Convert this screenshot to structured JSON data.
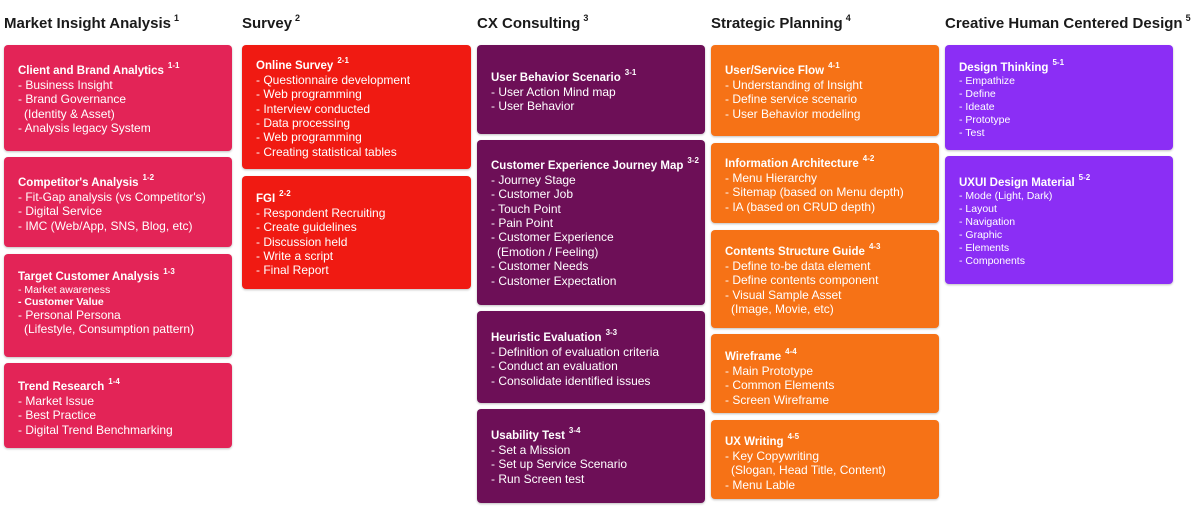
{
  "columns": [
    {
      "title": "Market Insight Analysis",
      "num": "1",
      "color": "#e32457",
      "cards": [
        {
          "title": "Client and Brand Analytics",
          "num": "1-1",
          "items": [
            "- Business Insight",
            "- Brand Governance",
            "(Identity & Asset)",
            "- Analysis legacy System"
          ]
        },
        {
          "title": "Competitor's Analysis",
          "num": "1-2",
          "items": [
            "- Fit-Gap analysis (vs Competitor's)",
            "- Digital Service",
            "- IMC (Web/App, SNS, Blog, etc)"
          ]
        },
        {
          "title": "Target Customer Analysis",
          "num": "1-3",
          "items": [
            "- Market awareness",
            "- Customer Value",
            "- Personal Persona",
            "(Lifestyle, Consumption pattern)"
          ]
        },
        {
          "title": "Trend Research",
          "num": "1-4",
          "items": [
            "- Market Issue",
            "- Best Practice",
            "- Digital Trend Benchmarking"
          ]
        }
      ]
    },
    {
      "title": "Survey",
      "num": "2",
      "color": "#f01a12",
      "cards": [
        {
          "title": "Online Survey",
          "num": "2-1",
          "items": [
            "- Questionnaire development",
            "- Web programming",
            "- Interview conducted",
            "- Data processing",
            "- Web programming",
            "- Creating statistical tables"
          ]
        },
        {
          "title": "FGI",
          "num": "2-2",
          "items": [
            "- Respondent Recruiting",
            "- Create guidelines",
            "- Discussion held",
            "- Write a script",
            "- Final Report"
          ]
        }
      ]
    },
    {
      "title": "CX Consulting",
      "num": "3",
      "color": "#6d0f57",
      "cards": [
        {
          "title": "User Behavior Scenario",
          "num": "3-1",
          "items": [
            "- User Action Mind map",
            "- User Behavior"
          ]
        },
        {
          "title": "Customer Experience Journey Map",
          "num": "3-2",
          "items": [
            "- Journey Stage",
            "- Customer Job",
            "- Touch Point",
            "- Pain Point",
            "- Customer Experience",
            "(Emotion / Feeling)",
            "- Customer Needs",
            "- Customer Expectation"
          ]
        },
        {
          "title": "Heuristic Evaluation",
          "num": "3-3",
          "items": [
            "- Definition of evaluation criteria",
            "- Conduct an evaluation",
            "- Consolidate identified issues"
          ]
        },
        {
          "title": "Usability Test",
          "num": "3-4",
          "items": [
            "- Set a Mission",
            "- Set up Service Scenario",
            "- Run Screen test"
          ]
        }
      ]
    },
    {
      "title": "Strategic Planning",
      "num": "4",
      "color": "#f67216",
      "cards": [
        {
          "title": "User/Service Flow",
          "num": "4-1",
          "items": [
            "- Understanding of Insight",
            "- Define service scenario",
            "- User Behavior modeling"
          ]
        },
        {
          "title": "Information Architecture",
          "num": "4-2",
          "items": [
            "- Menu Hierarchy",
            "- Sitemap (based on Menu depth)",
            "- IA (based on CRUD depth)"
          ]
        },
        {
          "title": "Contents Structure Guide",
          "num": "4-3",
          "items": [
            "- Define to-be data element",
            "- Define contents component",
            "- Visual Sample Asset",
            "(Image, Movie, etc)"
          ]
        },
        {
          "title": "Wireframe",
          "num": "4-4",
          "items": [
            "- Main Prototype",
            "- Common Elements",
            "- Screen Wireframe"
          ]
        },
        {
          "title": "UX Writing",
          "num": "4-5",
          "items": [
            "- Key Copywriting",
            "(Slogan, Head Title, Content)",
            "- Menu Lable"
          ]
        }
      ]
    },
    {
      "title": "Creative Human Centered Design",
      "num": "5",
      "color": "#8b2ef5",
      "cards": [
        {
          "title": "Design Thinking",
          "num": "5-1",
          "items": [
            "- Empathize",
            "- Define",
            "- Ideate",
            "- Prototype",
            "- Test"
          ]
        },
        {
          "title": "UXUI Design Material",
          "num": "5-2",
          "items": [
            "- Mode (Light, Dark)",
            "- Layout",
            "- Navigation",
            "- Graphic",
            "- Elements",
            "- Components"
          ]
        }
      ]
    }
  ]
}
